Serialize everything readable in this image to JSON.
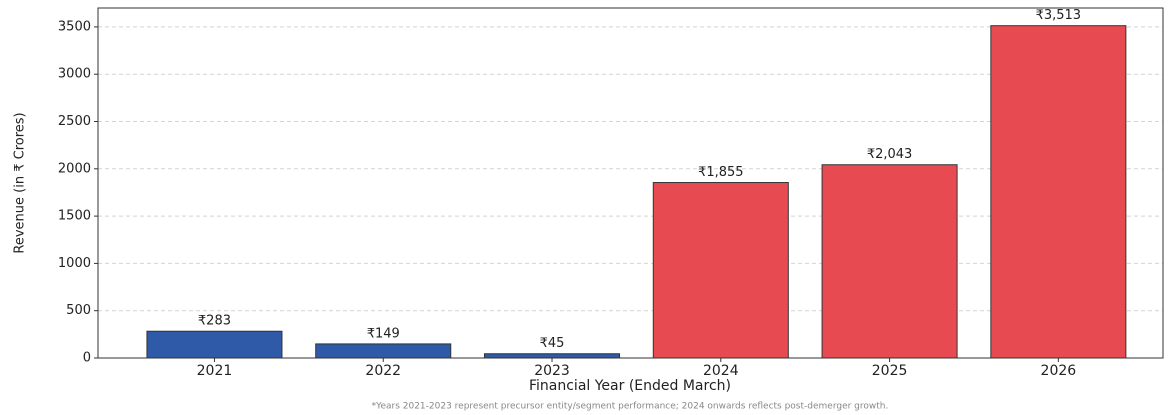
{
  "chart_data": {
    "type": "bar",
    "categories": [
      "2021",
      "2022",
      "2023",
      "2024",
      "2025",
      "2026"
    ],
    "values": [
      283,
      149,
      45,
      1855,
      2043,
      3513
    ],
    "value_labels": [
      "₹283",
      "₹149",
      "₹45",
      "₹1,855",
      "₹2,043",
      "₹3,513"
    ],
    "colors": [
      "#2f5aa8",
      "#2f5aa8",
      "#2f5aa8",
      "#e84a52",
      "#e84a52",
      "#e84a52"
    ],
    "ylabel": "Revenue (in ₹ Crores)",
    "xlabel": "Financial Year (Ended March)",
    "footnote": "*Years 2021-2023 represent precursor entity/segment performance; 2024 onwards reflects post-demerger growth.",
    "ylim": [
      0,
      3700
    ],
    "yticks": [
      0,
      500,
      1000,
      1500,
      2000,
      2500,
      3000,
      3500
    ],
    "grid": true
  }
}
